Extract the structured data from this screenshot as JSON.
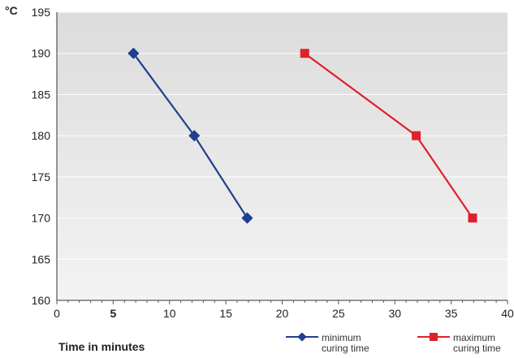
{
  "chart_data": {
    "type": "line",
    "title": "",
    "xlabel": "Time in minutes",
    "ylabel": "°C",
    "xlim": [
      0,
      40
    ],
    "ylim": [
      160,
      195
    ],
    "x_ticks": [
      "0",
      "5",
      "10",
      "15",
      "20",
      "25",
      "30",
      "35",
      "40"
    ],
    "x_tick_bold": "5",
    "y_ticks": [
      "160",
      "165",
      "170",
      "175",
      "180",
      "185",
      "190",
      "195"
    ],
    "grid": "horizontal",
    "plot_background": "gradient-gray",
    "legend_position": "bottom-right",
    "series": [
      {
        "name": "minimum curing time",
        "name_lines": [
          "minimum",
          "curing time"
        ],
        "color": "#1f3f8f",
        "marker": "diamond",
        "points": [
          {
            "x": 6.8,
            "y": 190
          },
          {
            "x": 12.2,
            "y": 180
          },
          {
            "x": 16.9,
            "y": 170
          }
        ]
      },
      {
        "name": "maximum curing time",
        "name_lines": [
          "maximum",
          "curing time"
        ],
        "color": "#e0202a",
        "marker": "square",
        "points": [
          {
            "x": 22.0,
            "y": 190
          },
          {
            "x": 31.9,
            "y": 180
          },
          {
            "x": 36.9,
            "y": 170
          }
        ]
      }
    ]
  }
}
